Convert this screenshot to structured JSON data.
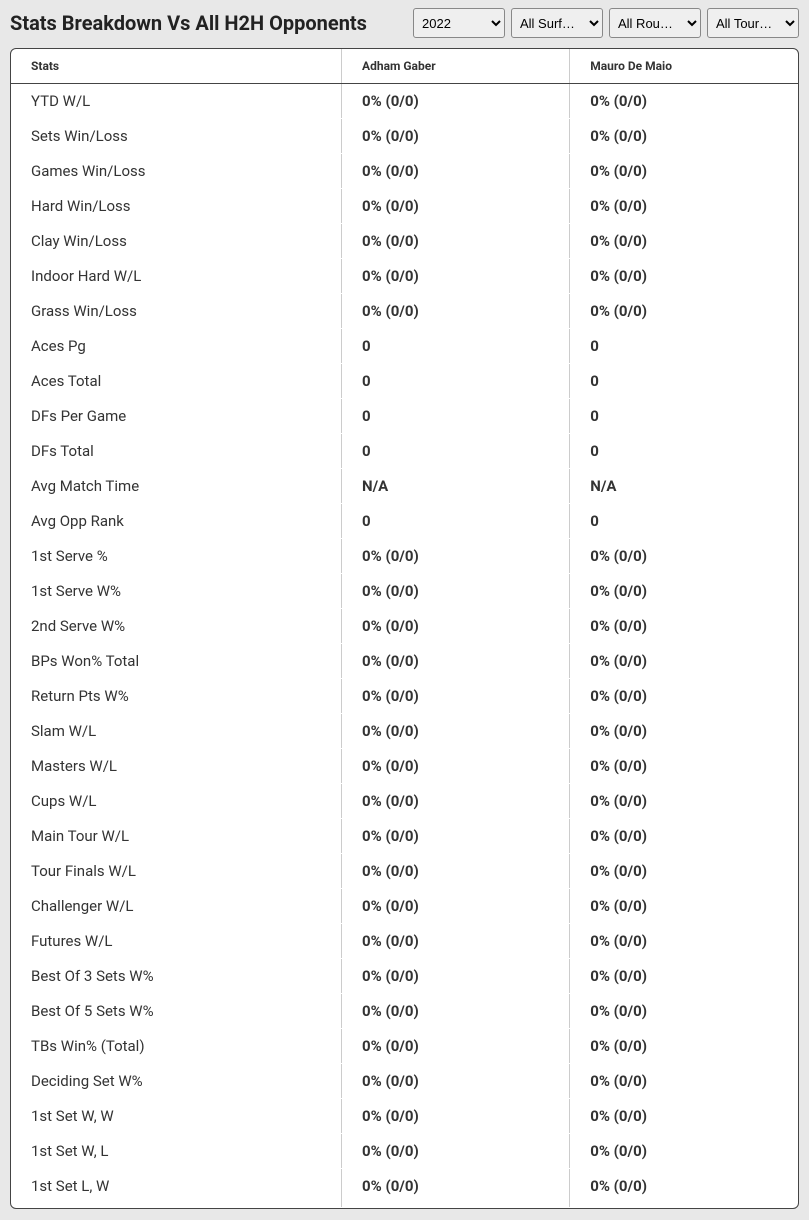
{
  "header": {
    "title": "Stats Breakdown Vs All H2H Opponents"
  },
  "filters": {
    "year": "2022",
    "surface": "All Surf…",
    "round": "All Rou…",
    "tour": "All Tour…"
  },
  "table": {
    "columns": [
      "Stats",
      "Adham Gaber",
      "Mauro De Maio"
    ],
    "rows": [
      [
        "YTD W/L",
        "0% (0/0)",
        "0% (0/0)"
      ],
      [
        "Sets Win/Loss",
        "0% (0/0)",
        "0% (0/0)"
      ],
      [
        "Games Win/Loss",
        "0% (0/0)",
        "0% (0/0)"
      ],
      [
        "Hard Win/Loss",
        "0% (0/0)",
        "0% (0/0)"
      ],
      [
        "Clay Win/Loss",
        "0% (0/0)",
        "0% (0/0)"
      ],
      [
        "Indoor Hard W/L",
        "0% (0/0)",
        "0% (0/0)"
      ],
      [
        "Grass Win/Loss",
        "0% (0/0)",
        "0% (0/0)"
      ],
      [
        "Aces Pg",
        "0",
        "0"
      ],
      [
        "Aces Total",
        "0",
        "0"
      ],
      [
        "DFs Per Game",
        "0",
        "0"
      ],
      [
        "DFs Total",
        "0",
        "0"
      ],
      [
        "Avg Match Time",
        "N/A",
        "N/A"
      ],
      [
        "Avg Opp Rank",
        "0",
        "0"
      ],
      [
        "1st Serve %",
        "0% (0/0)",
        "0% (0/0)"
      ],
      [
        "1st Serve W%",
        "0% (0/0)",
        "0% (0/0)"
      ],
      [
        "2nd Serve W%",
        "0% (0/0)",
        "0% (0/0)"
      ],
      [
        "BPs Won% Total",
        "0% (0/0)",
        "0% (0/0)"
      ],
      [
        "Return Pts W%",
        "0% (0/0)",
        "0% (0/0)"
      ],
      [
        "Slam W/L",
        "0% (0/0)",
        "0% (0/0)"
      ],
      [
        "Masters W/L",
        "0% (0/0)",
        "0% (0/0)"
      ],
      [
        "Cups W/L",
        "0% (0/0)",
        "0% (0/0)"
      ],
      [
        "Main Tour W/L",
        "0% (0/0)",
        "0% (0/0)"
      ],
      [
        "Tour Finals W/L",
        "0% (0/0)",
        "0% (0/0)"
      ],
      [
        "Challenger W/L",
        "0% (0/0)",
        "0% (0/0)"
      ],
      [
        "Futures W/L",
        "0% (0/0)",
        "0% (0/0)"
      ],
      [
        "Best Of 3 Sets W%",
        "0% (0/0)",
        "0% (0/0)"
      ],
      [
        "Best Of 5 Sets W%",
        "0% (0/0)",
        "0% (0/0)"
      ],
      [
        "TBs Win% (Total)",
        "0% (0/0)",
        "0% (0/0)"
      ],
      [
        "Deciding Set W%",
        "0% (0/0)",
        "0% (0/0)"
      ],
      [
        "1st Set W, W",
        "0% (0/0)",
        "0% (0/0)"
      ],
      [
        "1st Set W, L",
        "0% (0/0)",
        "0% (0/0)"
      ],
      [
        "1st Set L, W",
        "0% (0/0)",
        "0% (0/0)"
      ]
    ]
  },
  "styling": {
    "background_color": "#e8e8e8",
    "table_background": "#ffffff",
    "table_border": "#444444",
    "cell_divider": "#cccccc",
    "text_color": "#333333",
    "title_fontsize": 20,
    "header_fontsize": 12,
    "cell_fontsize": 15
  }
}
